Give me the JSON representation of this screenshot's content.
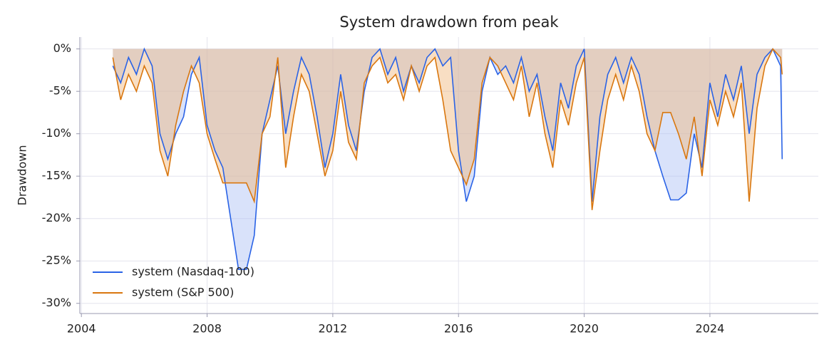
{
  "chart_data": {
    "type": "line",
    "title": "System drawdown from peak",
    "y_label": "Drawdown",
    "x": [
      2005.0,
      2005.25,
      2005.5,
      2005.75,
      2006.0,
      2006.25,
      2006.5,
      2006.75,
      2007.0,
      2007.25,
      2007.5,
      2007.75,
      2008.0,
      2008.25,
      2008.5,
      2008.75,
      2009.0,
      2009.25,
      2009.5,
      2009.75,
      2010.0,
      2010.25,
      2010.5,
      2010.75,
      2011.0,
      2011.25,
      2011.5,
      2011.75,
      2012.0,
      2012.25,
      2012.5,
      2012.75,
      2013.0,
      2013.25,
      2013.5,
      2013.75,
      2014.0,
      2014.25,
      2014.5,
      2014.75,
      2015.0,
      2015.25,
      2015.5,
      2015.75,
      2016.0,
      2016.25,
      2016.5,
      2016.75,
      2017.0,
      2017.25,
      2017.5,
      2017.75,
      2018.0,
      2018.25,
      2018.5,
      2018.75,
      2019.0,
      2019.25,
      2019.5,
      2019.75,
      2020.0,
      2020.25,
      2020.5,
      2020.75,
      2021.0,
      2021.25,
      2021.5,
      2021.75,
      2022.0,
      2022.25,
      2022.5,
      2022.75,
      2023.0,
      2023.25,
      2023.5,
      2023.75,
      2024.0,
      2024.25,
      2024.5,
      2024.75,
      2025.0,
      2025.25,
      2025.5,
      2025.75,
      2026.0,
      2026.25,
      2026.3
    ],
    "series": [
      {
        "name": "system (Nasdaq-100)",
        "color": "#2a63e6",
        "fill": "#aabff3",
        "values": [
          -2,
          -4,
          -1,
          -3,
          0,
          -2,
          -10,
          -13,
          -10,
          -8,
          -3,
          -1,
          -9,
          -12,
          -14,
          -20,
          -26,
          -26,
          -22,
          -10,
          -6,
          -2,
          -10,
          -5,
          -1,
          -3,
          -8,
          -14,
          -10,
          -3,
          -9,
          -12,
          -5,
          -1,
          0,
          -3,
          -1,
          -5,
          -2,
          -4,
          -1,
          0,
          -2,
          -1,
          -12,
          -18,
          -15,
          -5,
          -1,
          -3,
          -2,
          -4,
          -1,
          -5,
          -3,
          -8,
          -12,
          -4,
          -7,
          -2,
          0,
          -18,
          -8,
          -3,
          -1,
          -4,
          -1,
          -3,
          -8,
          -12,
          -15,
          -17.8,
          -17.8,
          -17,
          -10,
          -14,
          -4,
          -8,
          -3,
          -6,
          -2,
          -10,
          -3,
          -1,
          0,
          -2,
          -13
        ]
      },
      {
        "name": "system (S&P 500)",
        "color": "#d9770f",
        "fill": "#f0b57a",
        "values": [
          -1,
          -6,
          -3,
          -5,
          -2,
          -4,
          -12,
          -15,
          -9,
          -5,
          -2,
          -4,
          -10,
          -13,
          -15.8,
          -15.8,
          -15.8,
          -15.8,
          -18,
          -10,
          -8,
          -1,
          -14,
          -8,
          -3,
          -5,
          -10,
          -15,
          -12,
          -5,
          -11,
          -13,
          -4,
          -2,
          -1,
          -4,
          -3,
          -6,
          -2,
          -5,
          -2,
          -1,
          -6,
          -12,
          -14,
          -16,
          -13,
          -4,
          -1,
          -2,
          -4,
          -6,
          -2,
          -8,
          -4,
          -10,
          -14,
          -6,
          -9,
          -4,
          -1,
          -19,
          -12,
          -6,
          -3,
          -6,
          -2,
          -5,
          -10,
          -12,
          -7.5,
          -7.5,
          -10,
          -13,
          -8,
          -15,
          -6,
          -9,
          -5,
          -8,
          -4,
          -18,
          -7,
          -2,
          0,
          -1,
          -3
        ]
      }
    ],
    "xlim": [
      2003.95,
      2027.45
    ],
    "xticks": [
      2004,
      2008,
      2012,
      2016,
      2020,
      2024
    ],
    "ylim": [
      -31.2,
      1.4
    ],
    "yticks": [
      {
        "value": 0,
        "label": "0%"
      },
      {
        "value": -5,
        "label": "-5%"
      },
      {
        "value": -10,
        "label": "-10%"
      },
      {
        "value": -15,
        "label": "-15%"
      },
      {
        "value": -20,
        "label": "-20%"
      },
      {
        "value": -25,
        "label": "-25%"
      },
      {
        "value": -30,
        "label": "-30%"
      }
    ],
    "grid": true,
    "legend": "lower left"
  }
}
